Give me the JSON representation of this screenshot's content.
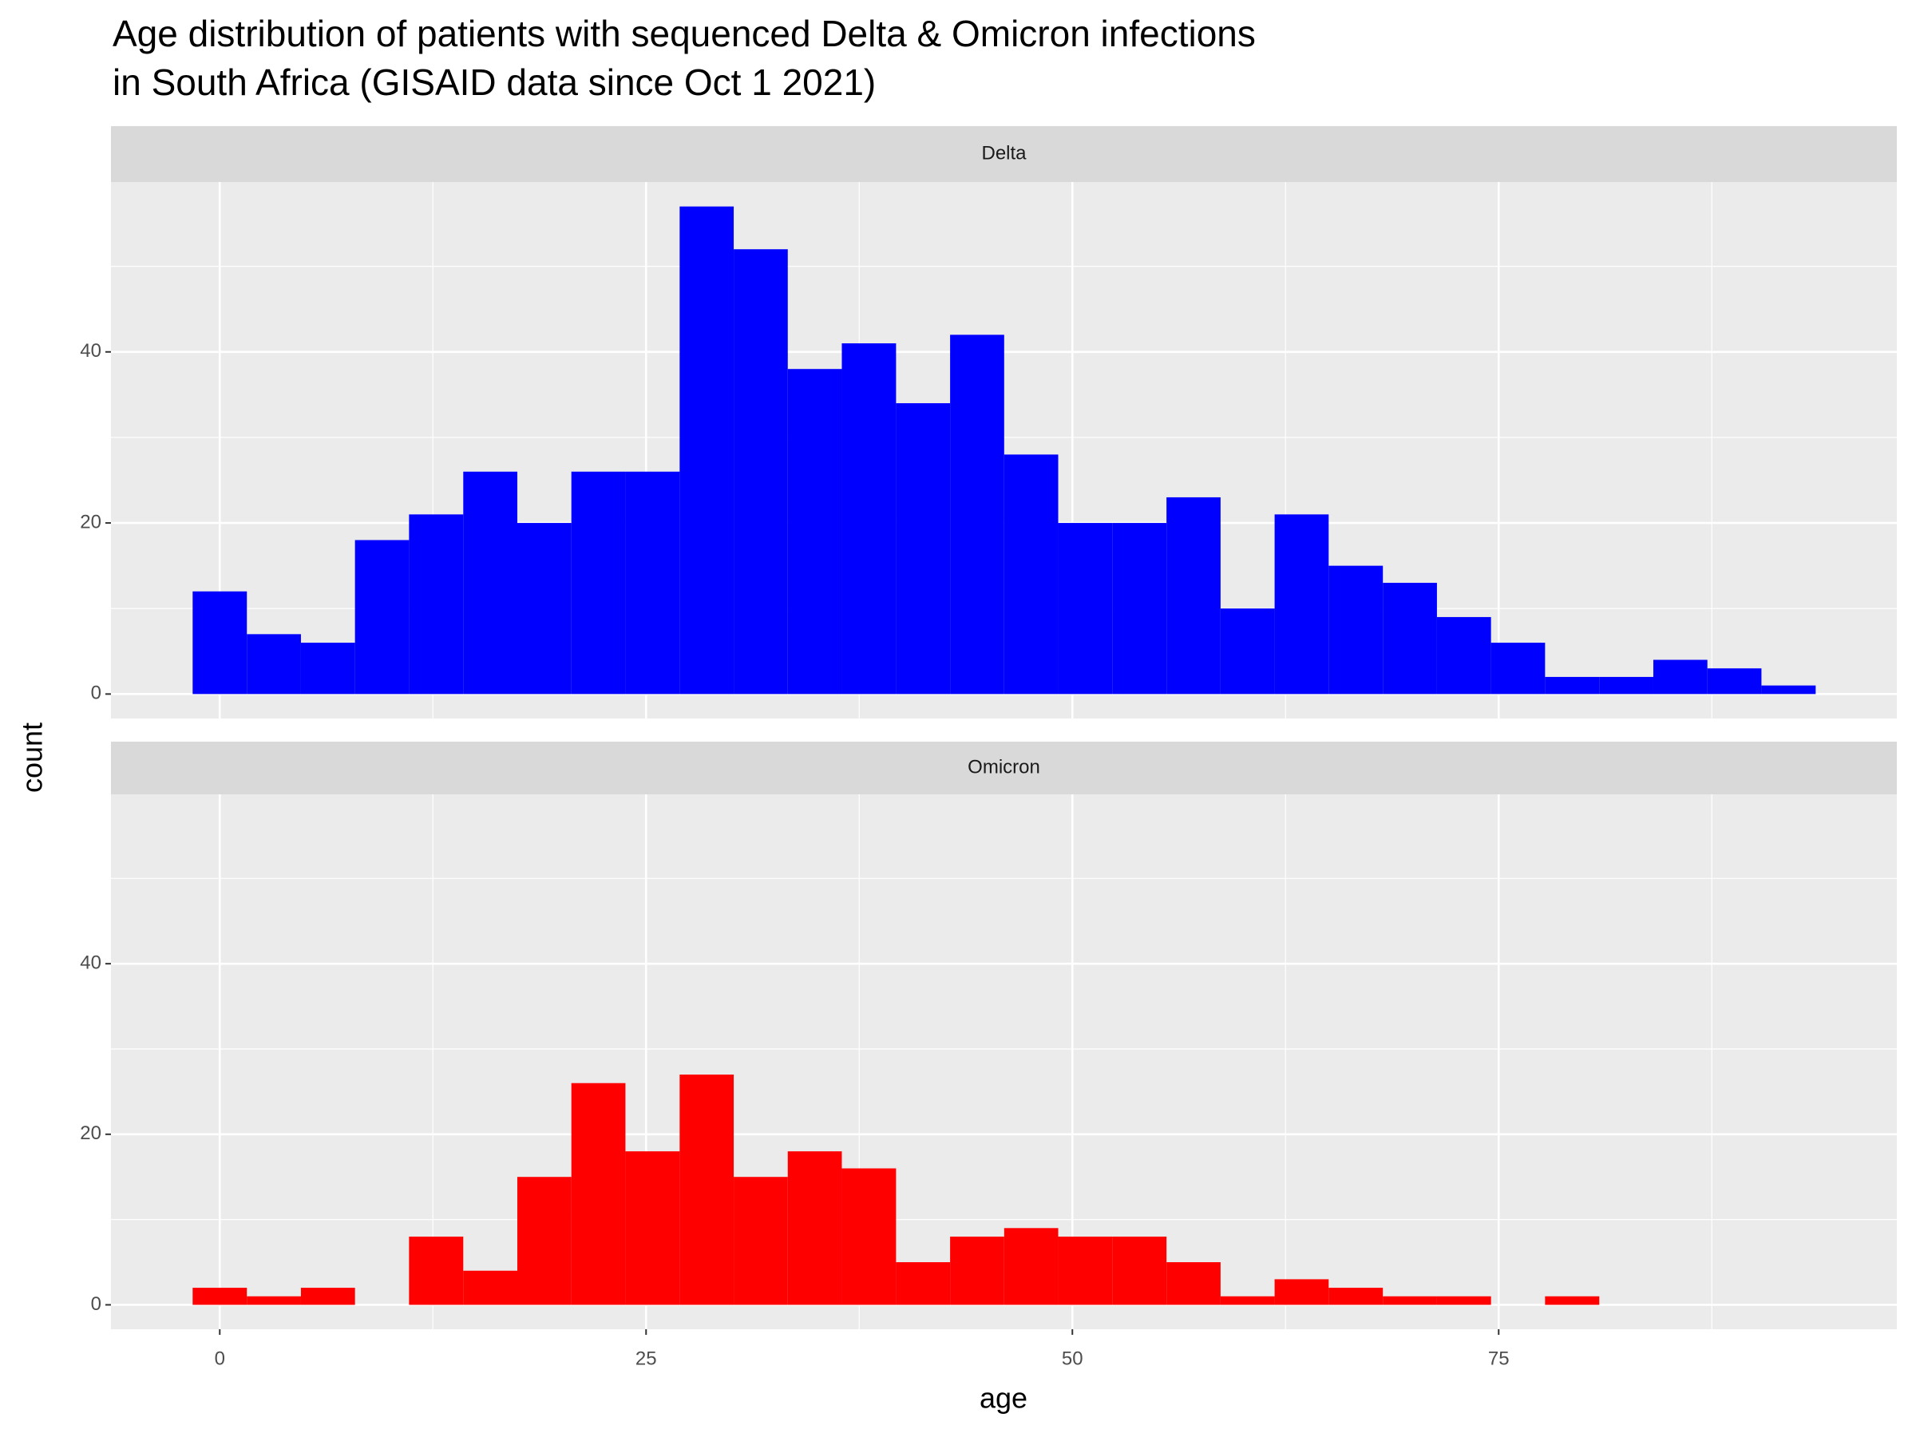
{
  "chart_data": {
    "type": "histogram",
    "title": [
      "Age distribution of patients with sequenced Delta & Omicron infections",
      "in South Africa (GISAID data since Oct 1 2021)"
    ],
    "x_label": "age",
    "y_label": "count",
    "bins": [
      -1.59,
      1.59,
      4.76,
      7.93,
      11.1,
      14.28,
      17.45,
      20.62,
      23.79,
      26.97,
      30.14,
      33.31,
      36.48,
      39.66,
      42.83,
      46.0,
      49.17,
      52.34,
      55.52,
      58.69,
      61.86,
      65.03,
      68.21,
      71.38,
      74.55,
      77.72,
      80.9,
      84.07,
      87.24,
      90.41,
      93.59
    ],
    "series": [
      {
        "name": "Delta",
        "color": "#0000ff",
        "values": [
          12,
          7,
          6,
          18,
          21,
          26,
          20,
          26,
          26,
          57,
          52,
          38,
          41,
          34,
          42,
          28,
          20,
          20,
          23,
          10,
          21,
          15,
          13,
          9,
          6,
          2,
          2,
          4,
          3,
          1
        ]
      },
      {
        "name": "Omicron",
        "color": "#ff0000",
        "values": [
          2,
          1,
          2,
          0,
          8,
          4,
          15,
          26,
          18,
          27,
          15,
          18,
          16,
          5,
          8,
          9,
          8,
          8,
          5,
          1,
          3,
          2,
          1,
          1,
          0,
          1,
          0,
          0,
          0,
          0
        ]
      }
    ],
    "xlim": [
      -6.38,
      98.35
    ],
    "ylim": [
      -2.86,
      59.86
    ],
    "xticks": [
      0,
      25,
      50,
      75
    ],
    "yticks": [
      0,
      20,
      40
    ],
    "grid": true
  }
}
